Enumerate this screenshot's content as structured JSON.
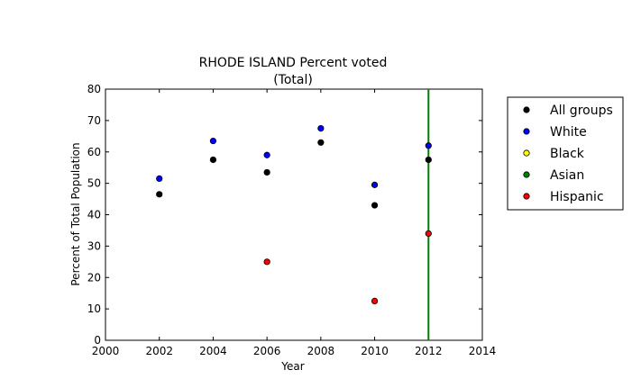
{
  "chart_data": {
    "type": "scatter",
    "title": "RHODE ISLAND Percent voted",
    "subtitle": "(Total)",
    "xlabel": "Year",
    "ylabel": "Percent of Total Population",
    "xlim": [
      2000,
      2014
    ],
    "ylim": [
      0,
      80
    ],
    "xticks": [
      2000,
      2002,
      2004,
      2006,
      2008,
      2010,
      2012,
      2014
    ],
    "yticks": [
      0,
      10,
      20,
      30,
      40,
      50,
      60,
      70,
      80
    ],
    "grid": false,
    "legend_position": "outside-right",
    "vertical_line": {
      "x": 2012,
      "color": "#007f00"
    },
    "series": [
      {
        "name": "All groups",
        "color": "#000000",
        "points": [
          [
            2002,
            46.5
          ],
          [
            2004,
            57.5
          ],
          [
            2006,
            53.5
          ],
          [
            2008,
            63
          ],
          [
            2010,
            43
          ],
          [
            2012,
            57.5
          ]
        ]
      },
      {
        "name": "White",
        "color": "#0000ff",
        "points": [
          [
            2002,
            51.5
          ],
          [
            2004,
            63.5
          ],
          [
            2006,
            59
          ],
          [
            2008,
            67.5
          ],
          [
            2010,
            49.5
          ],
          [
            2012,
            62
          ]
        ]
      },
      {
        "name": "Black",
        "color": "#ffff00",
        "points": []
      },
      {
        "name": "Asian",
        "color": "#007f00",
        "points": []
      },
      {
        "name": "Hispanic",
        "color": "#ff0000",
        "points": [
          [
            2006,
            25
          ],
          [
            2010,
            12.5
          ],
          [
            2012,
            34
          ]
        ]
      }
    ]
  }
}
